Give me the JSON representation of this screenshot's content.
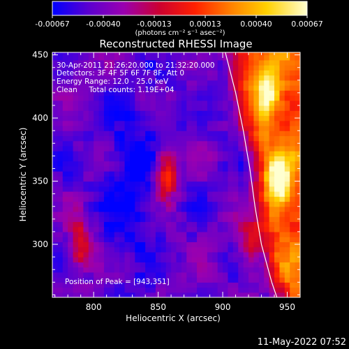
{
  "chart_data": {
    "type": "heatmap",
    "title": "Reconstructed RHESSI Image",
    "xlabel": "Heliocentric X (arcsec)",
    "ylabel": "Heliocentric Y (arcsec)",
    "xlim": [
      768,
      960
    ],
    "ylim": [
      258,
      452
    ],
    "x_ticks": [
      800,
      850,
      900,
      950
    ],
    "y_ticks": [
      300,
      350,
      400,
      450
    ],
    "colorbar": {
      "ticks": [
        "-0.00067",
        "-0.00040",
        "-0.00013",
        "0.00013",
        "0.00040",
        "0.00067"
      ],
      "unit_label": "(photons cm⁻² s⁻¹ asec⁻²)",
      "range": [
        -0.00067,
        0.00067
      ],
      "colors": [
        "#0000ff",
        "#5a00d0",
        "#9a00b0",
        "#cc0030",
        "#ff2000",
        "#ff8000",
        "#ffd000",
        "#ffffd0"
      ]
    },
    "annotations": {
      "time": "30-Apr-2011 21:26:20.000 to 21:32:20.000",
      "detectors": "Detectors: 3F 4F 5F 6F 7F 8F, Att 0",
      "energy": "Energy Range: 12.0 - 25.0 keV",
      "clean": "Clean     Total counts: 1.19E+04",
      "peak": "Position of Peak = [943,351]"
    },
    "limb_curve": [
      [
        902,
        452
      ],
      [
        910,
        420
      ],
      [
        916,
        390
      ],
      [
        921,
        360
      ],
      [
        925,
        330
      ],
      [
        930,
        300
      ],
      [
        938,
        270
      ],
      [
        942,
        258
      ]
    ],
    "emission_sources": [
      {
        "x": 856,
        "y": 355,
        "peak": 0.00062
      },
      {
        "x": 943,
        "y": 351,
        "peak": 0.00067
      },
      {
        "x": 935,
        "y": 420,
        "peak": 0.0005
      },
      {
        "x": 790,
        "y": 300,
        "peak": 0.00045
      },
      {
        "x": 920,
        "y": 300,
        "peak": 0.0004
      }
    ],
    "date_stamp": "11-May-2022 07:52"
  }
}
